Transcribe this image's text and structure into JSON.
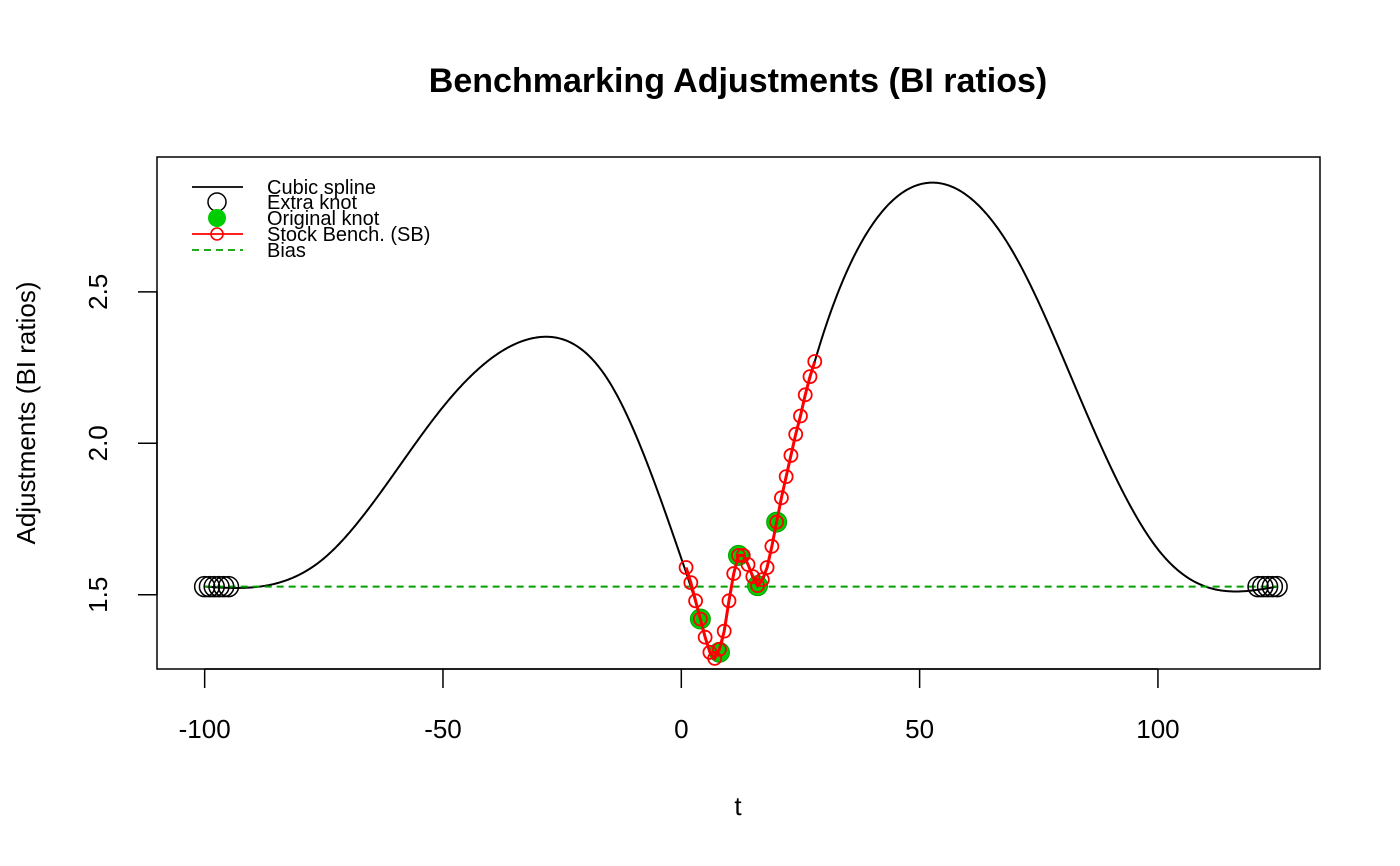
{
  "chart_data": {
    "type": "line",
    "title": "Benchmarking Adjustments (BI ratios)",
    "xlabel": "t",
    "ylabel": "Adjustments (BI ratios)",
    "xlim": [
      -110,
      134
    ],
    "ylim": [
      1.255,
      2.945
    ],
    "x_ticks": [
      -100,
      -50,
      0,
      50,
      100
    ],
    "x_tick_labels": [
      "-100",
      "-50",
      "0",
      "50",
      "100"
    ],
    "y_ticks": [
      1.5,
      2.0,
      2.5
    ],
    "y_tick_labels": [
      "1.5",
      "2.0",
      "2.5"
    ],
    "grid": false,
    "legend_position": "top-left",
    "bias": 1.527,
    "legend": [
      {
        "label": "Cubic spline",
        "kind": "line",
        "color": "#000000"
      },
      {
        "label": "Extra knot",
        "kind": "open-circle",
        "color": "#000000"
      },
      {
        "label": "Original knot",
        "kind": "filled-circle",
        "color": "#00CD00"
      },
      {
        "label": "Stock Bench. (SB)",
        "kind": "line-open-circle",
        "color": "#FF0000"
      },
      {
        "label": "Bias",
        "kind": "dashed-line",
        "color": "#00A000"
      }
    ],
    "spline_knots": {
      "x": [
        -100,
        -75,
        -50,
        -30,
        -15,
        0,
        4,
        8,
        12,
        16,
        20,
        28,
        40,
        52,
        70,
        85,
        100,
        110,
        125
      ],
      "y": [
        1.527,
        1.62,
        2.12,
        2.35,
        2.2,
        1.62,
        1.42,
        1.31,
        1.63,
        1.53,
        1.74,
        2.27,
        2.72,
        2.86,
        2.62,
        2.1,
        1.65,
        1.527,
        1.527
      ]
    },
    "extra_knots": {
      "x": [
        -100,
        -99,
        -98,
        -97,
        -96,
        -95,
        121,
        122,
        123,
        124,
        125
      ],
      "y": [
        1.527,
        1.527,
        1.527,
        1.527,
        1.527,
        1.527,
        1.527,
        1.527,
        1.527,
        1.527,
        1.527
      ]
    },
    "original_knots": {
      "x": [
        4,
        8,
        12,
        16,
        20
      ],
      "y": [
        1.42,
        1.31,
        1.63,
        1.53,
        1.74
      ]
    },
    "stock_bench": {
      "x": [
        1,
        2,
        3,
        4,
        5,
        6,
        7,
        8,
        9,
        10,
        11,
        12,
        13,
        14,
        15,
        16,
        17,
        18,
        19,
        20,
        21,
        22,
        23,
        24,
        25,
        26,
        27,
        28
      ],
      "y": [
        1.59,
        1.54,
        1.48,
        1.42,
        1.36,
        1.31,
        1.29,
        1.32,
        1.38,
        1.48,
        1.57,
        1.63,
        1.63,
        1.6,
        1.56,
        1.53,
        1.55,
        1.59,
        1.66,
        1.74,
        1.82,
        1.89,
        1.96,
        2.03,
        2.09,
        2.16,
        2.22,
        2.27
      ]
    }
  }
}
